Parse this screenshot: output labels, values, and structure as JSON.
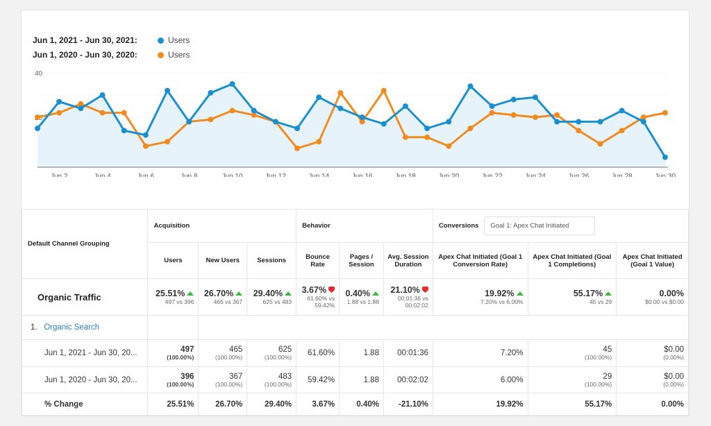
{
  "legend": [
    {
      "range": "Jun 1, 2021 - Jun 30, 2021:",
      "series": "Users",
      "color": "#1a8fd0"
    },
    {
      "range": "Jun 1, 2020 - Jun 30, 2020:",
      "series": "Users",
      "color": "#f08c1e"
    }
  ],
  "chart_data": {
    "type": "line",
    "x": [
      "Jun 1",
      "Jun 2",
      "Jun 3",
      "Jun 4",
      "Jun 5",
      "Jun 6",
      "Jun 7",
      "Jun 8",
      "Jun 9",
      "Jun 10",
      "Jun 11",
      "Jun 12",
      "Jun 13",
      "Jun 14",
      "Jun 15",
      "Jun 16",
      "Jun 17",
      "Jun 18",
      "Jun 19",
      "Jun 20",
      "Jun 21",
      "Jun 22",
      "Jun 23",
      "Jun 24",
      "Jun 25",
      "Jun 26",
      "Jun 27",
      "Jun 28",
      "Jun 29",
      "Jun 30"
    ],
    "xticks": [
      "Jun 2",
      "Jun 4",
      "Jun 6",
      "Jun 8",
      "Jun 10",
      "Jun 12",
      "Jun 14",
      "Jun 16",
      "Jun 18",
      "Jun 20",
      "Jun 22",
      "Jun 24",
      "Jun 26",
      "Jun 28",
      "Jun 30"
    ],
    "yticks": [
      "40",
      "20"
    ],
    "ylim": [
      0,
      40
    ],
    "grid": true,
    "legend_position": "top-left",
    "series": [
      {
        "name": "Users",
        "color": "#1a8fd0",
        "area": true,
        "values": [
          15,
          27,
          24,
          30,
          14,
          12,
          32,
          18,
          31,
          35,
          23,
          18,
          15,
          29,
          24,
          20,
          17,
          25,
          15,
          18,
          34,
          25,
          28,
          29,
          18,
          18,
          18,
          23,
          18,
          2
        ]
      },
      {
        "name": "Users",
        "color": "#f08c1e",
        "area": false,
        "values": [
          20,
          22,
          26,
          22,
          22,
          7,
          9,
          18,
          19,
          23,
          21,
          18,
          6,
          9,
          31,
          18,
          32,
          11,
          11,
          7,
          15,
          22,
          21,
          20,
          21,
          14,
          8,
          14,
          20,
          22
        ]
      }
    ]
  },
  "table": {
    "dim_header": "Default Channel Grouping",
    "groups": {
      "acq": "Acquisition",
      "beh": "Behavior",
      "conv": "Conversions",
      "goal": "Goal 1: Apex Chat Initiated"
    },
    "columns": [
      "Users",
      "New Users",
      "Sessions",
      "Bounce Rate",
      "Pages / Session",
      "Avg. Session Duration",
      "Apex Chat Initiated (Goal 1 Conversion Rate)",
      "Apex Chat Initiated (Goal 1 Completions)",
      "Apex Chat Initiated (Goal 1 Value)"
    ],
    "summary": {
      "label": "Organic Traffic",
      "cells": [
        {
          "v": "25.51%",
          "d": "up",
          "s": "497 vs 396"
        },
        {
          "v": "26.70%",
          "d": "up",
          "s": "465 vs 367"
        },
        {
          "v": "29.40%",
          "d": "up",
          "s": "625 vs 483"
        },
        {
          "v": "3.67%",
          "d": "down",
          "s": "61.60% vs 59.42%"
        },
        {
          "v": "0.40%",
          "d": "up",
          "s": "1.88 vs 1.88"
        },
        {
          "v": "21.10%",
          "d": "down",
          "s": "00:01:36 vs 00:02:02"
        },
        {
          "v": "19.92%",
          "d": "up",
          "s": "7.20% vs 6.00%"
        },
        {
          "v": "55.17%",
          "d": "up",
          "s": "45 vs 29"
        },
        {
          "v": "0.00%",
          "d": "",
          "s": "$0.00 vs $0.00"
        }
      ]
    },
    "channel": {
      "index": "1.",
      "name": "Organic Search"
    },
    "rows": [
      {
        "label": "Jun 1, 2021 - Jun 30, 20...",
        "cells": [
          [
            "497",
            "(100.00%)"
          ],
          [
            "465",
            "(100.00%)"
          ],
          [
            "625",
            "(100.00%)"
          ],
          [
            "61.60%",
            ""
          ],
          [
            "1.88",
            ""
          ],
          [
            "00:01:36",
            ""
          ],
          [
            "7.20%",
            ""
          ],
          [
            "45",
            "(100.00%)"
          ],
          [
            "$0.00",
            "(0.00%)"
          ]
        ]
      },
      {
        "label": "Jun 1, 2020 - Jun 30, 20...",
        "cells": [
          [
            "396",
            "(100.00%)"
          ],
          [
            "367",
            "(100.00%)"
          ],
          [
            "483",
            "(100.00%)"
          ],
          [
            "59.42%",
            ""
          ],
          [
            "1.88",
            ""
          ],
          [
            "00:02:02",
            ""
          ],
          [
            "6.00%",
            ""
          ],
          [
            "29",
            "(100.00%)"
          ],
          [
            "$0.00",
            "(0.00%)"
          ]
        ]
      }
    ],
    "change": {
      "label": "% Change",
      "cells": [
        "25.51%",
        "26.70%",
        "29.40%",
        "3.67%",
        "0.40%",
        "-21.10%",
        "19.92%",
        "55.17%",
        "0.00%"
      ]
    }
  }
}
